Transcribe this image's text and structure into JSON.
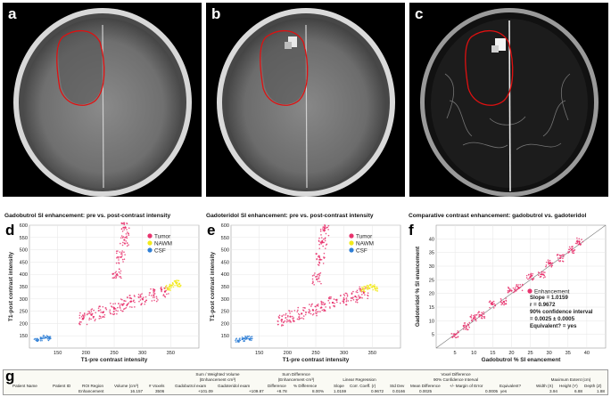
{
  "panels": {
    "a": {
      "label": "a"
    },
    "b": {
      "label": "b"
    },
    "c": {
      "label": "c"
    },
    "d": {
      "label": "d"
    },
    "e": {
      "label": "e"
    },
    "f": {
      "label": "f"
    },
    "g": {
      "label": "g"
    }
  },
  "chart_data": [
    {
      "type": "scatter",
      "title": "Gadobutrol SI enhancement: pre vs. post-contrast  intensity",
      "xlabel": "T1-pre contrast intensity",
      "ylabel": "T1-post contrast intensity",
      "xlim": [
        100,
        400
      ],
      "ylim": [
        100,
        600
      ],
      "xticks": [
        150,
        200,
        250,
        300,
        350
      ],
      "yticks": [
        150,
        200,
        250,
        300,
        350,
        400,
        450,
        500,
        550,
        600
      ],
      "legend_position": "top-right",
      "series": [
        {
          "name": "Tumor",
          "color": "#e8336d",
          "points": [
            [
              195,
              220
            ],
            [
              210,
              235
            ],
            [
              230,
              245
            ],
            [
              250,
              260
            ],
            [
              265,
              275
            ],
            [
              280,
              290
            ],
            [
              300,
              300
            ],
            [
              320,
              315
            ],
            [
              340,
              330
            ],
            [
              255,
              400
            ],
            [
              262,
              470
            ],
            [
              268,
              540
            ],
            [
              270,
              590
            ]
          ]
        },
        {
          "name": "NAWM",
          "color": "#f2ea1c",
          "points": [
            [
              345,
              345
            ],
            [
              352,
              355
            ],
            [
              360,
              365
            ],
            [
              365,
              360
            ]
          ]
        },
        {
          "name": "CSF",
          "color": "#2f7fd6",
          "points": [
            [
              112,
              132
            ],
            [
              120,
              138
            ],
            [
              128,
              142
            ],
            [
              136,
              140
            ]
          ]
        }
      ]
    },
    {
      "type": "scatter",
      "title": "Gadoteridol SI enhancement: pre vs. post-contrast  intensity",
      "xlabel": "T1-pre contrast intensity",
      "ylabel": "T1-post contrast intensity",
      "xlim": [
        100,
        400
      ],
      "ylim": [
        100,
        600
      ],
      "xticks": [
        150,
        200,
        250,
        300,
        350
      ],
      "yticks": [
        150,
        200,
        250,
        300,
        350,
        400,
        450,
        500,
        550,
        600
      ],
      "legend_position": "top-right",
      "series": [
        {
          "name": "Tumor",
          "color": "#e8336d",
          "points": [
            [
              190,
              215
            ],
            [
              205,
              228
            ],
            [
              225,
              240
            ],
            [
              245,
              255
            ],
            [
              260,
              265
            ],
            [
              280,
              285
            ],
            [
              300,
              298
            ],
            [
              320,
              310
            ],
            [
              335,
              325
            ],
            [
              252,
              380
            ],
            [
              258,
              460
            ],
            [
              262,
              530
            ],
            [
              265,
              580
            ]
          ]
        },
        {
          "name": "NAWM",
          "color": "#f2ea1c",
          "points": [
            [
              335,
              340
            ],
            [
              342,
              345
            ],
            [
              350,
              348
            ],
            [
              355,
              342
            ]
          ]
        },
        {
          "name": "CSF",
          "color": "#2f7fd6",
          "points": [
            [
              112,
              130
            ],
            [
              120,
              136
            ],
            [
              128,
              140
            ],
            [
              134,
              138
            ]
          ]
        }
      ]
    },
    {
      "type": "scatter",
      "title": "Comparative contrast enhancement: gadobutrol vs. gadoteridol",
      "xlabel": "Gadobutrol % SI enancement",
      "ylabel": "Gadoteridol % SI enancement",
      "xlim": [
        0,
        45
      ],
      "ylim": [
        0,
        45
      ],
      "xticks": [
        5,
        10,
        15,
        20,
        25,
        30,
        35,
        40
      ],
      "yticks": [
        5,
        10,
        15,
        20,
        25,
        30,
        35,
        40
      ],
      "legend_position": "right",
      "series": [
        {
          "name": "Enhancement",
          "color": "#e8336d",
          "points": [
            [
              5,
              5
            ],
            [
              8,
              8
            ],
            [
              10,
              11
            ],
            [
              12,
              12
            ],
            [
              15,
              16
            ],
            [
              18,
              17
            ],
            [
              20,
              21
            ],
            [
              22,
              22
            ],
            [
              25,
              26
            ],
            [
              28,
              27
            ],
            [
              30,
              31
            ],
            [
              33,
              33
            ],
            [
              36,
              36
            ],
            [
              38,
              39
            ]
          ]
        }
      ],
      "annotations": [
        "Slope = 1.0159",
        "r = 0.9672",
        "90% confidence interval",
        " = 0.0025 ± 0.0005",
        "Equivalent? = yes"
      ]
    }
  ],
  "table": {
    "group_headers": {
      "sum_volume_line1": "Sum / Weighted Volume",
      "sum_volume_line2": "(Enhancement·cm³)",
      "sum_diff_line1": "Sum Difference",
      "sum_diff_line2": "(Enhancement·cm³)",
      "linreg": "Linear Regression",
      "voxel_diff_line1": "Voxel Difference",
      "voxel_diff_line2": "90% Confidence Interval",
      "max_extent": "Maximum Extent (cm)"
    },
    "columns": {
      "patient_name": "Patient Name",
      "patient_id": "Patient ID",
      "roi_region": "ROI Region",
      "volume": "Volume (cm³)",
      "voxels": "# Voxels",
      "gadobutrol_exam": "Gadobutrol exam",
      "gadoteridol_exam": "Gadoteridol exam",
      "difference": "Difference",
      "pct_difference": "% Difference",
      "slope": "Slope",
      "corr_coeff": "Corr. Coeff. (r)",
      "std_dev": "Std Dev",
      "mean_difference": "Mean Difference",
      "margin_error": "+/- Margin of Error",
      "equivalent": "Equivalent?",
      "width": "Width (X)",
      "height": "Height (Y)",
      "depth": "Depth (Z)"
    },
    "row": {
      "roi_region": "Enhancement",
      "volume": "16.157",
      "voxels": "3506",
      "gadobutrol_exam": "+101.09",
      "gadoteridol_exam": "+109.87",
      "difference": "+8.78",
      "pct_difference": "8.00%",
      "slope": "1.0159",
      "corr_coeff": "0.9672",
      "std_dev": "0.0166",
      "mean_difference": "0.0025",
      "margin_error": "0.0005",
      "equivalent": "yes",
      "width": "3.94",
      "height": "6.88",
      "depth": "1.88"
    }
  }
}
